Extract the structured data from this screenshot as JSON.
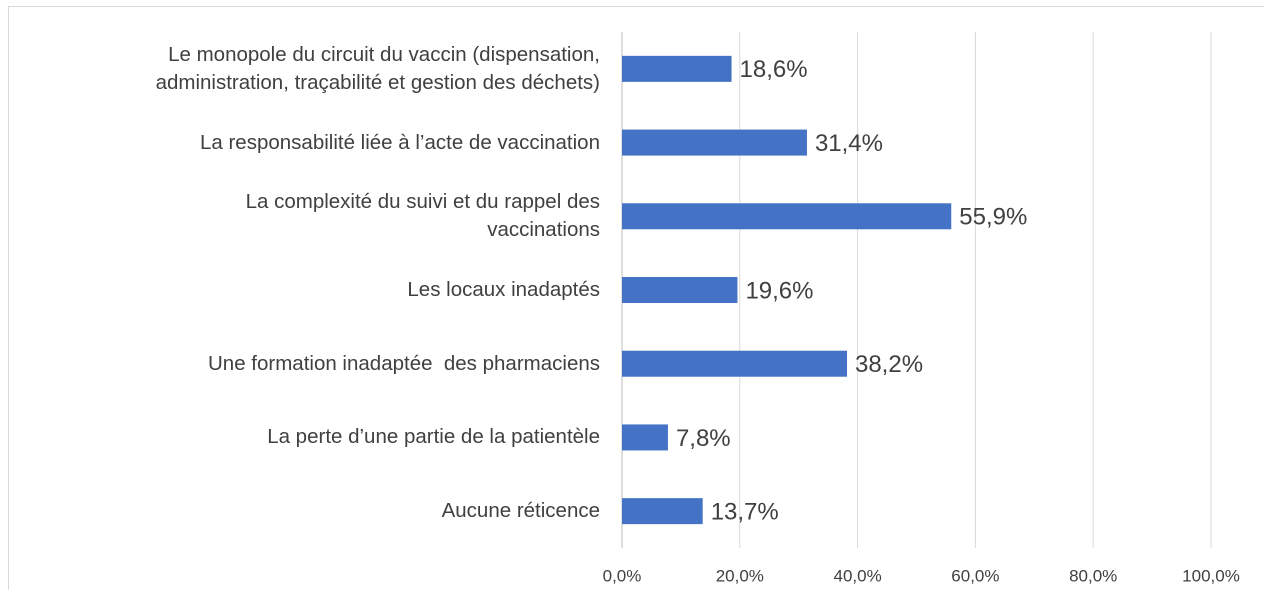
{
  "chart_data": {
    "type": "bar",
    "orientation": "horizontal",
    "categories": [
      "Le monopole du circuit du vaccin (dispensation,\nadministration, traçabilité et gestion des déchets)",
      "La responsabilité liée à l’acte de vaccination",
      "La complexité du suivi et du rappel des\nvaccinations",
      "Les locaux inadaptés",
      "Une formation inadaptée  des pharmaciens",
      "La perte d’une partie de la patientèle",
      "Aucune réticence"
    ],
    "values": [
      18.6,
      31.4,
      55.9,
      19.6,
      38.2,
      7.8,
      13.7
    ],
    "value_labels": [
      "18,6%",
      "31,4%",
      "55,9%",
      "19,6%",
      "38,2%",
      "7,8%",
      "13,7%"
    ],
    "color": "#4472c4",
    "xlim": [
      0,
      100
    ],
    "xticks": [
      {
        "value": 0,
        "label": "0,0%"
      },
      {
        "value": 20,
        "label": "20,0%"
      },
      {
        "value": 40,
        "label": "40,0%"
      },
      {
        "value": 60,
        "label": "60,0%"
      },
      {
        "value": 80,
        "label": "80,0%"
      },
      {
        "value": 100,
        "label": "100,0%"
      }
    ],
    "grid": true
  }
}
